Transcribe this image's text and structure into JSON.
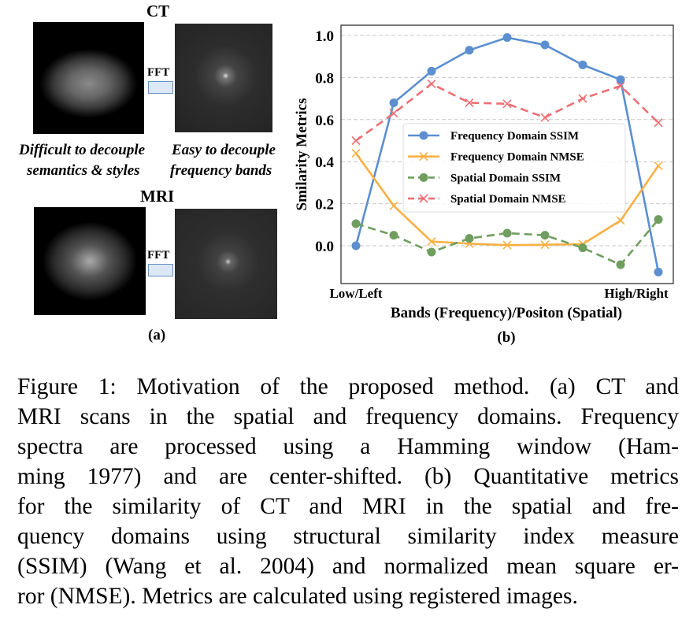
{
  "panel_a": {
    "ct_title": "CT",
    "mri_title": "MRI",
    "fft_label": "FFT",
    "left_desc": [
      "Difficult to decouple",
      "semantics & styles"
    ],
    "right_desc": [
      "Easy to decouple",
      "frequency bands"
    ],
    "label": "(a)"
  },
  "panel_b_label": "(b)",
  "chart_data": {
    "type": "line",
    "ylabel": "Smilarity Metrics",
    "xlabel": "Bands (Frequency)/Positon (Spatial)",
    "x_tick_labels": [
      "Low/Left",
      "High/Right"
    ],
    "x": [
      1,
      2,
      3,
      4,
      5,
      6,
      7,
      8,
      9
    ],
    "ylim": [
      -0.15,
      1.05
    ],
    "yticks": [
      "0.0",
      "0.2",
      "0.4",
      "0.6",
      "0.8",
      "1.0"
    ],
    "grid": "horizontal dashed",
    "legend": "center-right",
    "series": [
      {
        "name": "Frequency Domain SSIM",
        "color": "#5b8fd0",
        "dash": false,
        "marker": "circle",
        "values": [
          0.0,
          0.68,
          0.83,
          0.93,
          0.99,
          0.955,
          0.86,
          0.79,
          -0.125
        ]
      },
      {
        "name": "Frequency Domain NMSE",
        "color": "#f8b044",
        "dash": false,
        "marker": "x",
        "values": [
          0.44,
          0.19,
          0.02,
          0.01,
          0.003,
          0.005,
          0.008,
          0.12,
          0.38
        ]
      },
      {
        "name": "Spatial Domain SSIM",
        "color": "#6f9e5f",
        "dash": true,
        "marker": "circle",
        "values": [
          0.105,
          0.05,
          -0.03,
          0.035,
          0.06,
          0.05,
          -0.01,
          -0.09,
          0.125
        ]
      },
      {
        "name": "Spatial Domain NMSE",
        "color": "#ec6f74",
        "dash": true,
        "marker": "x",
        "values": [
          0.5,
          0.63,
          0.77,
          0.68,
          0.675,
          0.61,
          0.7,
          0.76,
          0.585
        ]
      }
    ]
  },
  "caption": [
    "Figure 1: Motivation of the proposed method. (a) CT and",
    "MRI scans in the spatial and frequency domains. Frequency",
    "spectra are processed using a Hamming window (Ham-",
    "ming 1977) and are center-shifted. (b) Quantitative metrics",
    "for the similarity of CT and MRI in the spatial and fre-",
    "quency domains using structural similarity index measure",
    "(SSIM) (Wang et al. 2004) and normalized mean square er-",
    "ror (NMSE). Metrics are calculated using registered images."
  ]
}
